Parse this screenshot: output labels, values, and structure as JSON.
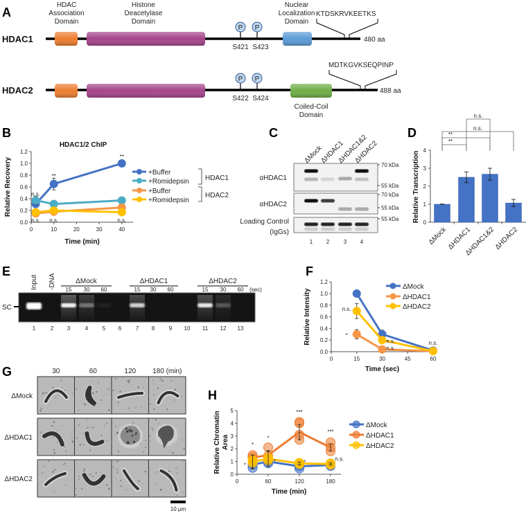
{
  "panel_labels": {
    "a": "A",
    "b": "B",
    "c": "C",
    "d": "D",
    "e": "E",
    "f": "F",
    "g": "G",
    "h": "H"
  },
  "panel_a": {
    "domain_labels": {
      "association": [
        "HDAC",
        "Association",
        "Domain"
      ],
      "deacetylase": [
        "Histone",
        "Deacetylase",
        "Domain"
      ],
      "nls": [
        "Nuclear",
        "Localization",
        "Domain"
      ],
      "coiled_coil": [
        "Coiled-Coil",
        "Domain"
      ]
    },
    "phospho_symbol": "P",
    "proteins": [
      {
        "name": "HDAC1",
        "length": "480 aa",
        "phospho_sites": [
          "S421",
          "S423"
        ],
        "tail_sequence": "KTDSKRVKEETKS"
      },
      {
        "name": "HDAC2",
        "length": "488 aa",
        "phospho_sites": [
          "S422",
          "S424"
        ],
        "tail_sequence": "MDTKGVKSEQPINP"
      }
    ],
    "colors": {
      "association": "#ED7D31",
      "deacetylase": "#A5448B",
      "nls": "#5B9BD5",
      "coiled_coil": "#70AD47",
      "phospho": "#BDD7EE"
    }
  },
  "panel_c": {
    "lanes": [
      "ΔMock",
      "ΔHDAC1",
      "ΔHDAC1&2",
      "ΔHDAC2"
    ],
    "lane_numbers": [
      "1",
      "2",
      "3",
      "4"
    ],
    "blots": [
      {
        "label": [
          "αHDAC1"
        ],
        "markers": [
          "70 kDa",
          "55 kDa"
        ]
      },
      {
        "label": [
          "αHDAC2"
        ],
        "markers": [
          "70 kDa",
          "55 kDa"
        ]
      },
      {
        "label": [
          "Loading Control",
          "(IgGs)"
        ],
        "markers": [
          "55 kDa"
        ]
      }
    ]
  },
  "panel_e": {
    "band_label": "SC",
    "single_lanes": [
      "Input",
      "-DNA"
    ],
    "groups": [
      {
        "name": "ΔMock",
        "times": [
          "15",
          "30",
          "60"
        ]
      },
      {
        "name": "ΔHDAC1",
        "times": [
          "15",
          "30",
          "60"
        ]
      },
      {
        "name": "ΔHDAC2",
        "times": [
          "15",
          "30",
          "60"
        ]
      }
    ],
    "time_unit": "(sec)",
    "lane_numbers": [
      "1",
      "2",
      "3",
      "4",
      "5",
      "6",
      "7",
      "8",
      "9",
      "10",
      "11",
      "12",
      "13"
    ]
  },
  "panel_g": {
    "times": [
      "30",
      "60",
      "120",
      "180 (min)"
    ],
    "rows": [
      "ΔMock",
      "ΔHDAC1",
      "ΔHDAC2"
    ],
    "scale_bar": "10 μm"
  },
  "chart_data": [
    {
      "panel": "B",
      "type": "line",
      "title": "HDAC1/2 ChIP",
      "xlabel": "Time (min)",
      "ylabel": "Relative Recovery",
      "xlim": [
        0,
        45
      ],
      "ylim": [
        0,
        1.2
      ],
      "xticks": [
        "0",
        "10",
        "20",
        "30",
        "40"
      ],
      "yticks": [
        "0.0",
        "0.2",
        "0.4",
        "0.6",
        "0.8",
        "1.0",
        "1.2"
      ],
      "grid": false,
      "legend": "right",
      "legend_groups": [
        "HDAC1",
        "HDAC2"
      ],
      "series": [
        {
          "name": "+Buffer",
          "group": "HDAC1",
          "color": "#4472C4",
          "x": [
            2,
            10,
            40
          ],
          "y": [
            0.31,
            0.65,
            1.0
          ],
          "err": [
            0.05,
            0.1,
            0.0
          ]
        },
        {
          "name": "+Romidepsin",
          "group": "HDAC1",
          "color": "#4BACC6",
          "x": [
            2,
            10,
            40
          ],
          "y": [
            0.37,
            0.31,
            0.37
          ],
          "err": [
            0.07,
            0.03,
            0.05
          ]
        },
        {
          "name": "+Buffer",
          "group": "HDAC2",
          "color": "#F79646",
          "x": [
            2,
            10,
            40
          ],
          "y": [
            0.15,
            0.18,
            0.25
          ],
          "err": [
            0.05,
            0.03,
            0.04
          ]
        },
        {
          "name": "+Romidepsin",
          "group": "HDAC2",
          "color": "#FFC000",
          "x": [
            2,
            10,
            40
          ],
          "y": [
            0.17,
            0.2,
            0.17
          ],
          "err": [
            0.05,
            0.03,
            0.03
          ]
        }
      ],
      "annotations": [
        {
          "text": "n.s.",
          "x": 2,
          "y": 0.45
        },
        {
          "text": "**",
          "x": 10,
          "y": 0.8
        },
        {
          "text": "**",
          "x": 40,
          "y": 1.13
        },
        {
          "text": "n.s.",
          "x": 2,
          "y": 0.0
        },
        {
          "text": "n.s.",
          "x": 10,
          "y": 0.0
        },
        {
          "text": "n.s.",
          "x": 40,
          "y": 0.0
        }
      ]
    },
    {
      "panel": "D",
      "type": "bar",
      "ylabel": "Relative Transcription",
      "ylim": [
        0,
        4
      ],
      "yticks": [
        "0",
        "1",
        "2",
        "3",
        "4"
      ],
      "categories": [
        "ΔMock",
        "ΔHDAC1",
        "ΔHDAC1&2",
        "ΔHDAC2"
      ],
      "values": [
        1.0,
        2.5,
        2.67,
        1.07
      ],
      "err": [
        0.01,
        0.3,
        0.33,
        0.2
      ],
      "color": "#4472C4",
      "significance": [
        {
          "from": 0,
          "to": 1,
          "label": "**"
        },
        {
          "from": 0,
          "to": 2,
          "label": "**"
        },
        {
          "from": 0,
          "to": 3,
          "label": "n.s."
        },
        {
          "from": 1,
          "to": 2,
          "label": "n.s."
        }
      ]
    },
    {
      "panel": "F",
      "type": "line",
      "xlabel": "Time (sec)",
      "ylabel": "Relative Intensity",
      "xlim": [
        0,
        60
      ],
      "ylim": [
        0,
        1.2
      ],
      "xticks": [
        "0",
        "15",
        "30",
        "45",
        "60"
      ],
      "yticks": [
        "0.0",
        "0.2",
        "0.4",
        "0.6",
        "0.8",
        "1.0",
        "1.2"
      ],
      "legend": "top-right",
      "series": [
        {
          "name": "ΔMock",
          "color": "#4472C4",
          "x": [
            15,
            30,
            60
          ],
          "y": [
            1.0,
            0.3,
            0.02
          ],
          "err": [
            0.0,
            0.07,
            0.0
          ]
        },
        {
          "name": "ΔHDAC1",
          "color": "#F79646",
          "x": [
            15,
            30,
            60
          ],
          "y": [
            0.3,
            0.04,
            0.01
          ],
          "err": [
            0.08,
            0.01,
            0.0
          ]
        },
        {
          "name": "ΔHDAC2",
          "color": "#FFC000",
          "x": [
            15,
            30,
            60
          ],
          "y": [
            0.7,
            0.2,
            0.01
          ],
          "err": [
            0.13,
            0.05,
            0.0
          ]
        }
      ],
      "annotations": [
        {
          "text": "n.s.",
          "x": 9,
          "y": 0.7
        },
        {
          "text": "*",
          "x": 9,
          "y": 0.3
        },
        {
          "text": "n.s.",
          "x": 35,
          "y": 0.15
        },
        {
          "text": "n.s.",
          "x": 35,
          "y": 0.03
        },
        {
          "text": "n.s.",
          "x": 60,
          "y": 0.12
        }
      ]
    },
    {
      "panel": "H",
      "type": "line",
      "xlabel": "Time (min)",
      "ylabel": [
        "Relative Chromatin",
        "Area"
      ],
      "xlim": [
        0,
        200
      ],
      "ylim": [
        0,
        5
      ],
      "xticks": [
        "0",
        "60",
        "120",
        "180"
      ],
      "yticks": [
        "0",
        "1",
        "2",
        "3",
        "4",
        "5"
      ],
      "legend": "right",
      "series": [
        {
          "name": "ΔMock",
          "color": "#4472C4",
          "x": [
            30,
            60,
            120,
            180
          ],
          "y": [
            0.75,
            1.0,
            0.62,
            0.72
          ],
          "err": [
            0.35,
            0.2,
            0.15,
            0.1
          ],
          "replicates": [
            [
              0.5,
              0.75,
              1.0
            ],
            [
              0.85,
              1.0,
              1.2
            ],
            [
              0.45,
              0.62,
              0.75
            ],
            [
              0.65,
              0.72,
              0.85
            ]
          ]
        },
        {
          "name": "ΔHDAC1",
          "color": "#ED7D31",
          "x": [
            30,
            60,
            120,
            180
          ],
          "y": [
            1.3,
            1.5,
            3.3,
            2.1
          ],
          "err": [
            0.2,
            0.35,
            0.6,
            0.25
          ],
          "replicates": [
            [
              1.2,
              1.35,
              1.5
            ],
            [
              1.3,
              1.45,
              2.1
            ],
            [
              2.7,
              3.1,
              4.0,
              4.1
            ],
            [
              1.8,
              2.1,
              2.5
            ]
          ]
        },
        {
          "name": "ΔHDAC2",
          "color": "#FFC000",
          "x": [
            30,
            60,
            120,
            180
          ],
          "y": [
            1.0,
            1.2,
            0.85,
            0.8
          ],
          "err": [
            0.5,
            0.6,
            0.1,
            0.08
          ],
          "replicates": [
            [
              0.9,
              1.0,
              1.1
            ],
            [
              1.1,
              1.2,
              1.3
            ],
            [
              0.8,
              0.85,
              0.9
            ],
            [
              0.75,
              0.8,
              0.85
            ]
          ]
        }
      ],
      "annotations": [
        {
          "text": "*",
          "x": 15,
          "y": 0.8
        },
        {
          "text": "*",
          "x": 30,
          "y": 2.4
        },
        {
          "text": "*",
          "x": 60,
          "y": 2.9
        },
        {
          "text": "*",
          "x": 72,
          "y": 1.1
        },
        {
          "text": "***",
          "x": 120,
          "y": 4.95
        },
        {
          "text": "*",
          "x": 130,
          "y": 1.0
        },
        {
          "text": "***",
          "x": 180,
          "y": 3.4
        },
        {
          "text": "n.s.",
          "x": 197,
          "y": 1.05
        }
      ]
    }
  ]
}
